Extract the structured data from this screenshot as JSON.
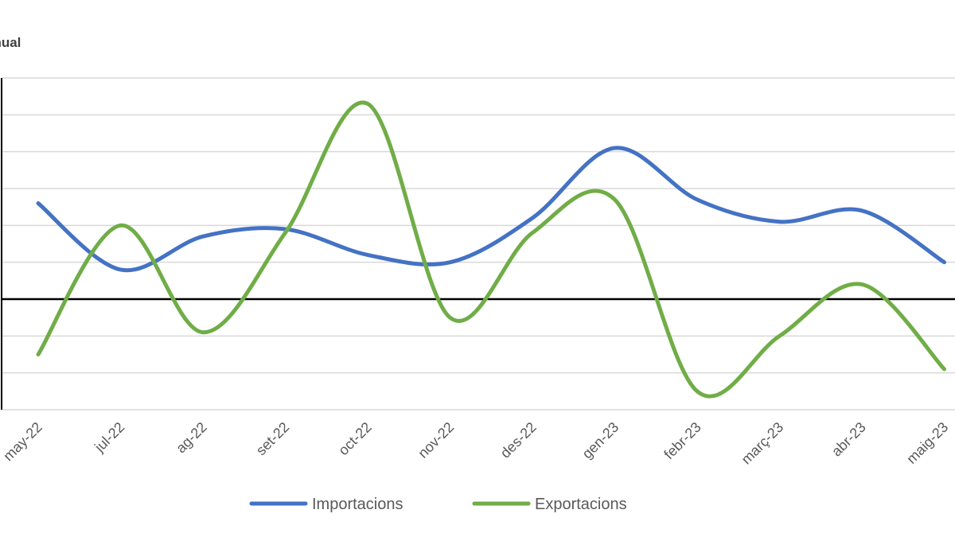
{
  "chart_data": {
    "type": "line",
    "title": "anual",
    "categories": [
      "may-22",
      "jul-22",
      "ag-22",
      "set-22",
      "oct-22",
      "nov-22",
      "des-22",
      "gen-23",
      "febr-23",
      "març-23",
      "abr-23",
      "maig-23"
    ],
    "series": [
      {
        "name": "Importacions",
        "color": "#4472C4",
        "values": [
          2.6,
          0.8,
          1.7,
          1.9,
          1.2,
          1.0,
          2.2,
          4.1,
          2.7,
          2.1,
          2.4,
          1.0
        ]
      },
      {
        "name": "Exportacions",
        "color": "#70AD47",
        "values": [
          -1.5,
          2.0,
          -0.9,
          1.8,
          5.3,
          -0.5,
          1.8,
          2.7,
          -2.5,
          -1.0,
          0.4,
          -1.9
        ]
      }
    ],
    "ylim": [
      -3,
      6
    ],
    "grid": true,
    "legend": "bottom-center",
    "zero_line": true
  }
}
